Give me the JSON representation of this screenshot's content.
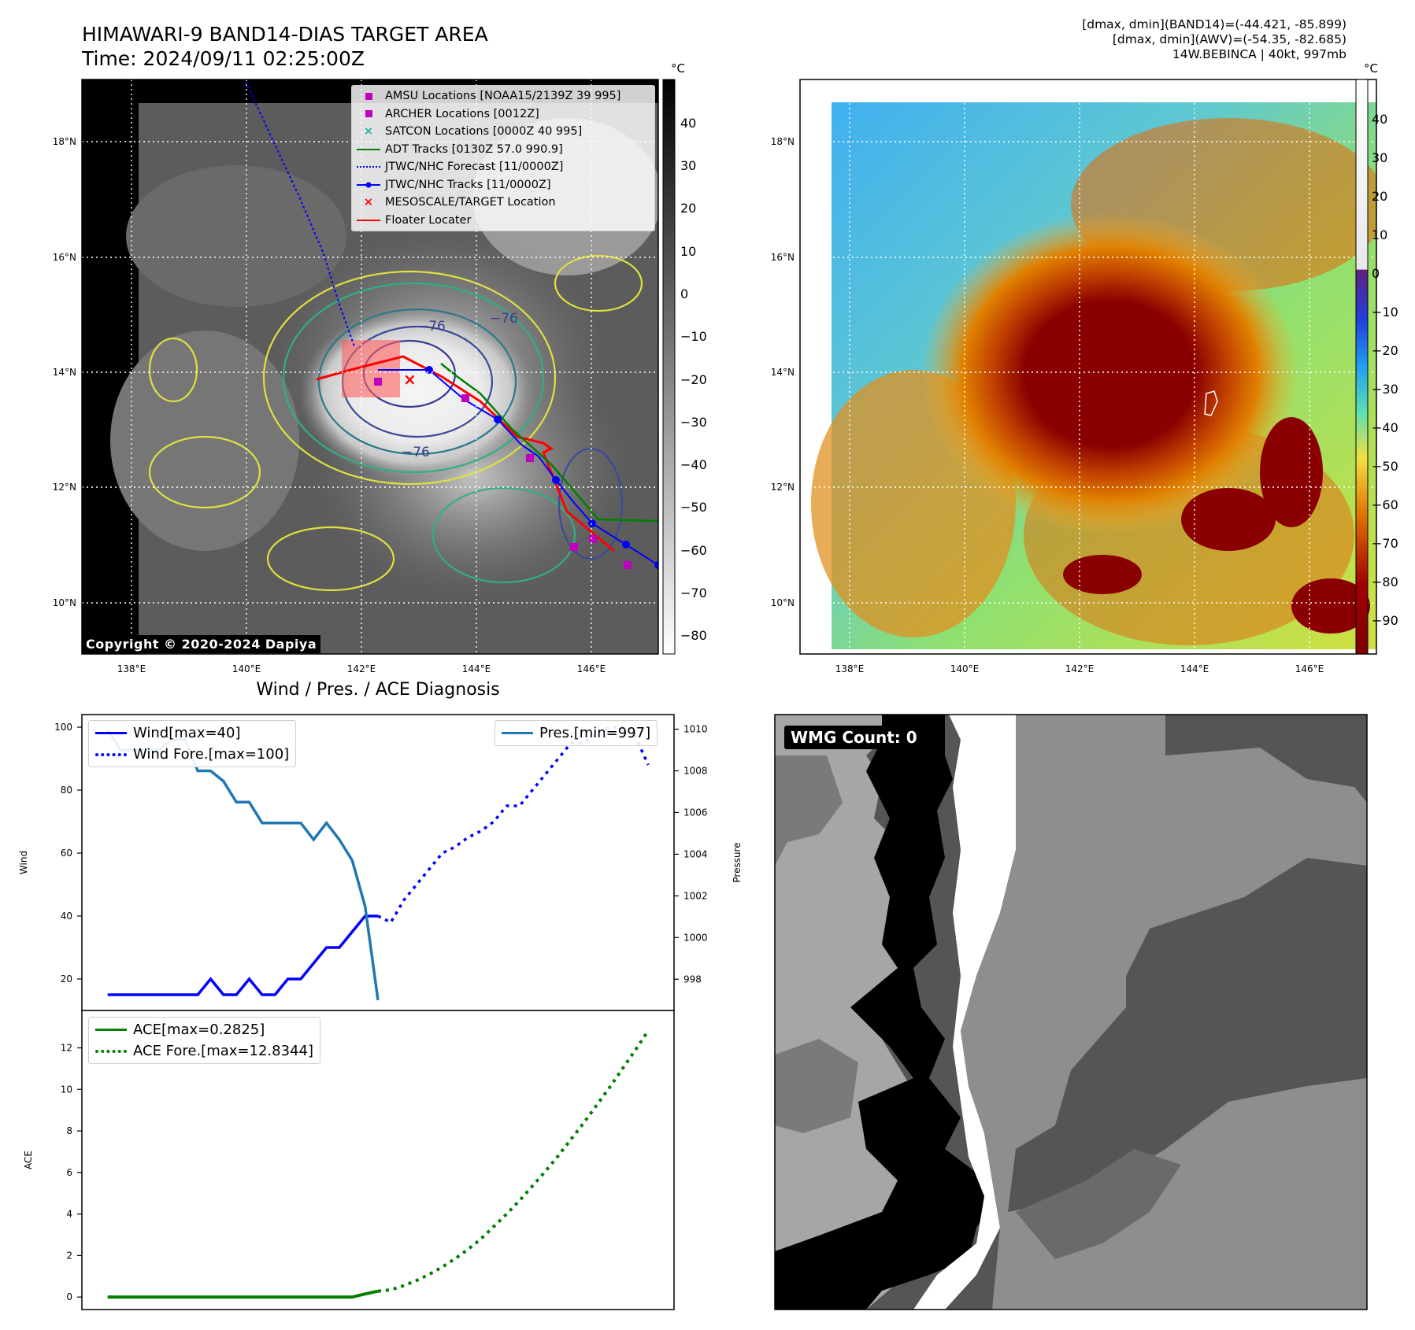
{
  "header": {
    "title_line1": "HIMAWARI-9 BAND14-DIAS TARGET AREA",
    "title_line2": "Time: 2024/09/11 02:25:00Z",
    "info_line1": "[dmax, dmin](BAND14)=(-44.421, -85.899)",
    "info_line2": "[dmax, dmin](AWV)=(-54.35, -82.685)",
    "info_line3": "14W.BEBINCA | 40kt, 997mb"
  },
  "ir_map": {
    "copyright": "Copyright © 2020-2024 Dapiya",
    "lon_ticks": [
      "138°E",
      "140°E",
      "142°E",
      "144°E",
      "146°E"
    ],
    "lat_ticks": [
      "18°N",
      "16°N",
      "14°N",
      "12°N",
      "10°N"
    ],
    "colorbar_unit": "°C",
    "colorbar_ticks": [
      "40",
      "30",
      "20",
      "10",
      "0",
      "−10",
      "−20",
      "−30",
      "−40",
      "−50",
      "−60",
      "−70",
      "−80"
    ],
    "contour_labels": [
      "−76",
      "−76",
      "−76"
    ],
    "legend": [
      {
        "label": "AMSU Locations [NOAA15/2139Z 39 995]",
        "symbol": "square",
        "color": "#c000c0"
      },
      {
        "label": "ARCHER Locations [0012Z]",
        "symbol": "square",
        "color": "#c000c0"
      },
      {
        "label": "SATCON Locations [0000Z 40 995]",
        "symbol": "x",
        "color": "#20b0a0"
      },
      {
        "label": "ADT Tracks [0130Z 57.0 990.9]",
        "symbol": "line",
        "color": "#008000"
      },
      {
        "label": "JTWC/NHC Forecast [11/0000Z]",
        "symbol": "dotted",
        "color": "#0000ff"
      },
      {
        "label": "JTWC/NHC Tracks [11/0000Z]",
        "symbol": "line-dot",
        "color": "#0000ff"
      },
      {
        "label": "MESOSCALE/TARGET Location",
        "symbol": "x",
        "color": "#ff0000"
      },
      {
        "label": "Floater Locater",
        "symbol": "line",
        "color": "#ff0000"
      }
    ]
  },
  "wv_map": {
    "lon_ticks": [
      "138°E",
      "140°E",
      "142°E",
      "144°E",
      "146°E"
    ],
    "lat_ticks": [
      "18°N",
      "16°N",
      "14°N",
      "12°N",
      "10°N"
    ],
    "colorbar_unit": "°C",
    "colorbar_ticks": [
      "40",
      "30",
      "20",
      "10",
      "0",
      "−10",
      "−20",
      "−30",
      "−40",
      "−50",
      "−60",
      "−70",
      "−80",
      "−90"
    ]
  },
  "diagnosis": {
    "title": "Wind / Pres. / ACE Diagnosis",
    "wind_ylabel": "Wind",
    "pres_ylabel": "Pressure",
    "ace_ylabel": "ACE",
    "wind_legend": [
      "Wind[max=40]",
      "Wind Fore.[max=100]"
    ],
    "pres_legend": [
      "Pres.[min=997]"
    ],
    "ace_legend": [
      "ACE[max=0.2825]",
      "ACE Fore.[max=12.8344]"
    ]
  },
  "wmg": {
    "label": "WMG Count: 0"
  },
  "chart_data": [
    {
      "type": "line",
      "panel": "wind-pressure",
      "x": [
        0,
        1,
        2,
        3,
        4,
        5,
        6,
        7,
        8,
        9,
        10,
        11,
        12,
        13,
        14,
        15,
        16,
        17,
        18,
        19,
        20,
        21
      ],
      "series": [
        {
          "name": "Wind[max=40]",
          "axis": "left",
          "color": "#0000ff",
          "x": [
            0,
            1,
            2,
            3,
            4,
            5,
            6,
            7,
            8,
            9,
            10,
            11,
            12,
            13,
            14,
            15,
            16,
            17,
            18,
            19,
            20,
            21
          ],
          "values": [
            15,
            15,
            15,
            15,
            15,
            15,
            15,
            15,
            20,
            15,
            15,
            20,
            15,
            15,
            20,
            20,
            25,
            30,
            30,
            35,
            40,
            40
          ]
        },
        {
          "name": "Wind Fore.[max=100]",
          "axis": "left",
          "color": "#0000ff",
          "style": "dotted",
          "x": [
            21,
            22,
            23,
            24,
            25,
            26,
            27,
            28,
            29,
            30,
            31,
            32,
            33,
            34,
            35,
            36,
            37,
            38,
            39,
            40,
            41,
            42
          ],
          "values": [
            40,
            38,
            45,
            50,
            55,
            60,
            62,
            65,
            67,
            70,
            75,
            75,
            80,
            85,
            90,
            95,
            95,
            98,
            100,
            100,
            97,
            88
          ]
        },
        {
          "name": "Pres.[min=997]",
          "axis": "right",
          "color": "#1f77b4",
          "x": [
            0,
            1,
            2,
            3,
            4,
            5,
            6,
            7,
            8,
            9,
            10,
            11,
            12,
            13,
            14,
            15,
            16,
            17,
            18,
            19,
            20,
            21
          ],
          "values": [
            1010,
            1009,
            1009,
            1009,
            1009,
            1009.5,
            1009.5,
            1008,
            1008,
            1007.5,
            1006.5,
            1006.5,
            1005.5,
            1005.5,
            1005.5,
            1005.5,
            1004.7,
            1005.5,
            1004.7,
            1003.7,
            1001.5,
            997
          ]
        }
      ],
      "ylim_left": [
        10,
        104
      ],
      "left_ticks": [
        20,
        40,
        60,
        80,
        100
      ],
      "ylim_right": [
        996.5,
        1010.7
      ],
      "right_ticks": [
        998,
        1000,
        1002,
        1004,
        1006,
        1008,
        1010
      ],
      "xlim": [
        -2,
        44
      ]
    },
    {
      "type": "line",
      "panel": "ace",
      "series": [
        {
          "name": "ACE[max=0.2825]",
          "color": "#008000",
          "x": [
            0,
            1,
            2,
            3,
            4,
            5,
            6,
            7,
            8,
            9,
            10,
            11,
            12,
            13,
            14,
            15,
            16,
            17,
            18,
            19,
            20,
            21
          ],
          "values": [
            0,
            0,
            0,
            0,
            0,
            0,
            0,
            0,
            0,
            0,
            0,
            0,
            0,
            0,
            0,
            0,
            0,
            0,
            0,
            0,
            0.15,
            0.2825
          ]
        },
        {
          "name": "ACE Fore.[max=12.8344]",
          "color": "#008000",
          "style": "dotted",
          "x": [
            21,
            22,
            23,
            24,
            25,
            26,
            27,
            28,
            29,
            30,
            31,
            32,
            33,
            34,
            35,
            36,
            37,
            38,
            39,
            40,
            41,
            42
          ],
          "values": [
            0.2825,
            0.35,
            0.55,
            0.8,
            1.1,
            1.45,
            1.85,
            2.3,
            2.8,
            3.4,
            4.0,
            4.65,
            5.35,
            6.05,
            6.8,
            7.6,
            8.4,
            9.25,
            10.1,
            11.0,
            11.9,
            12.8344
          ]
        }
      ],
      "ylim": [
        -0.6,
        13.8
      ],
      "ticks": [
        0,
        2,
        4,
        6,
        8,
        10,
        12
      ],
      "xlim": [
        -2,
        44
      ]
    }
  ],
  "colors": {
    "wind": "#0000ff",
    "pressure": "#1f77b4",
    "ace": "#008000",
    "floater": "#ff0000",
    "jtwc": "#0000ff",
    "adt": "#008000"
  }
}
